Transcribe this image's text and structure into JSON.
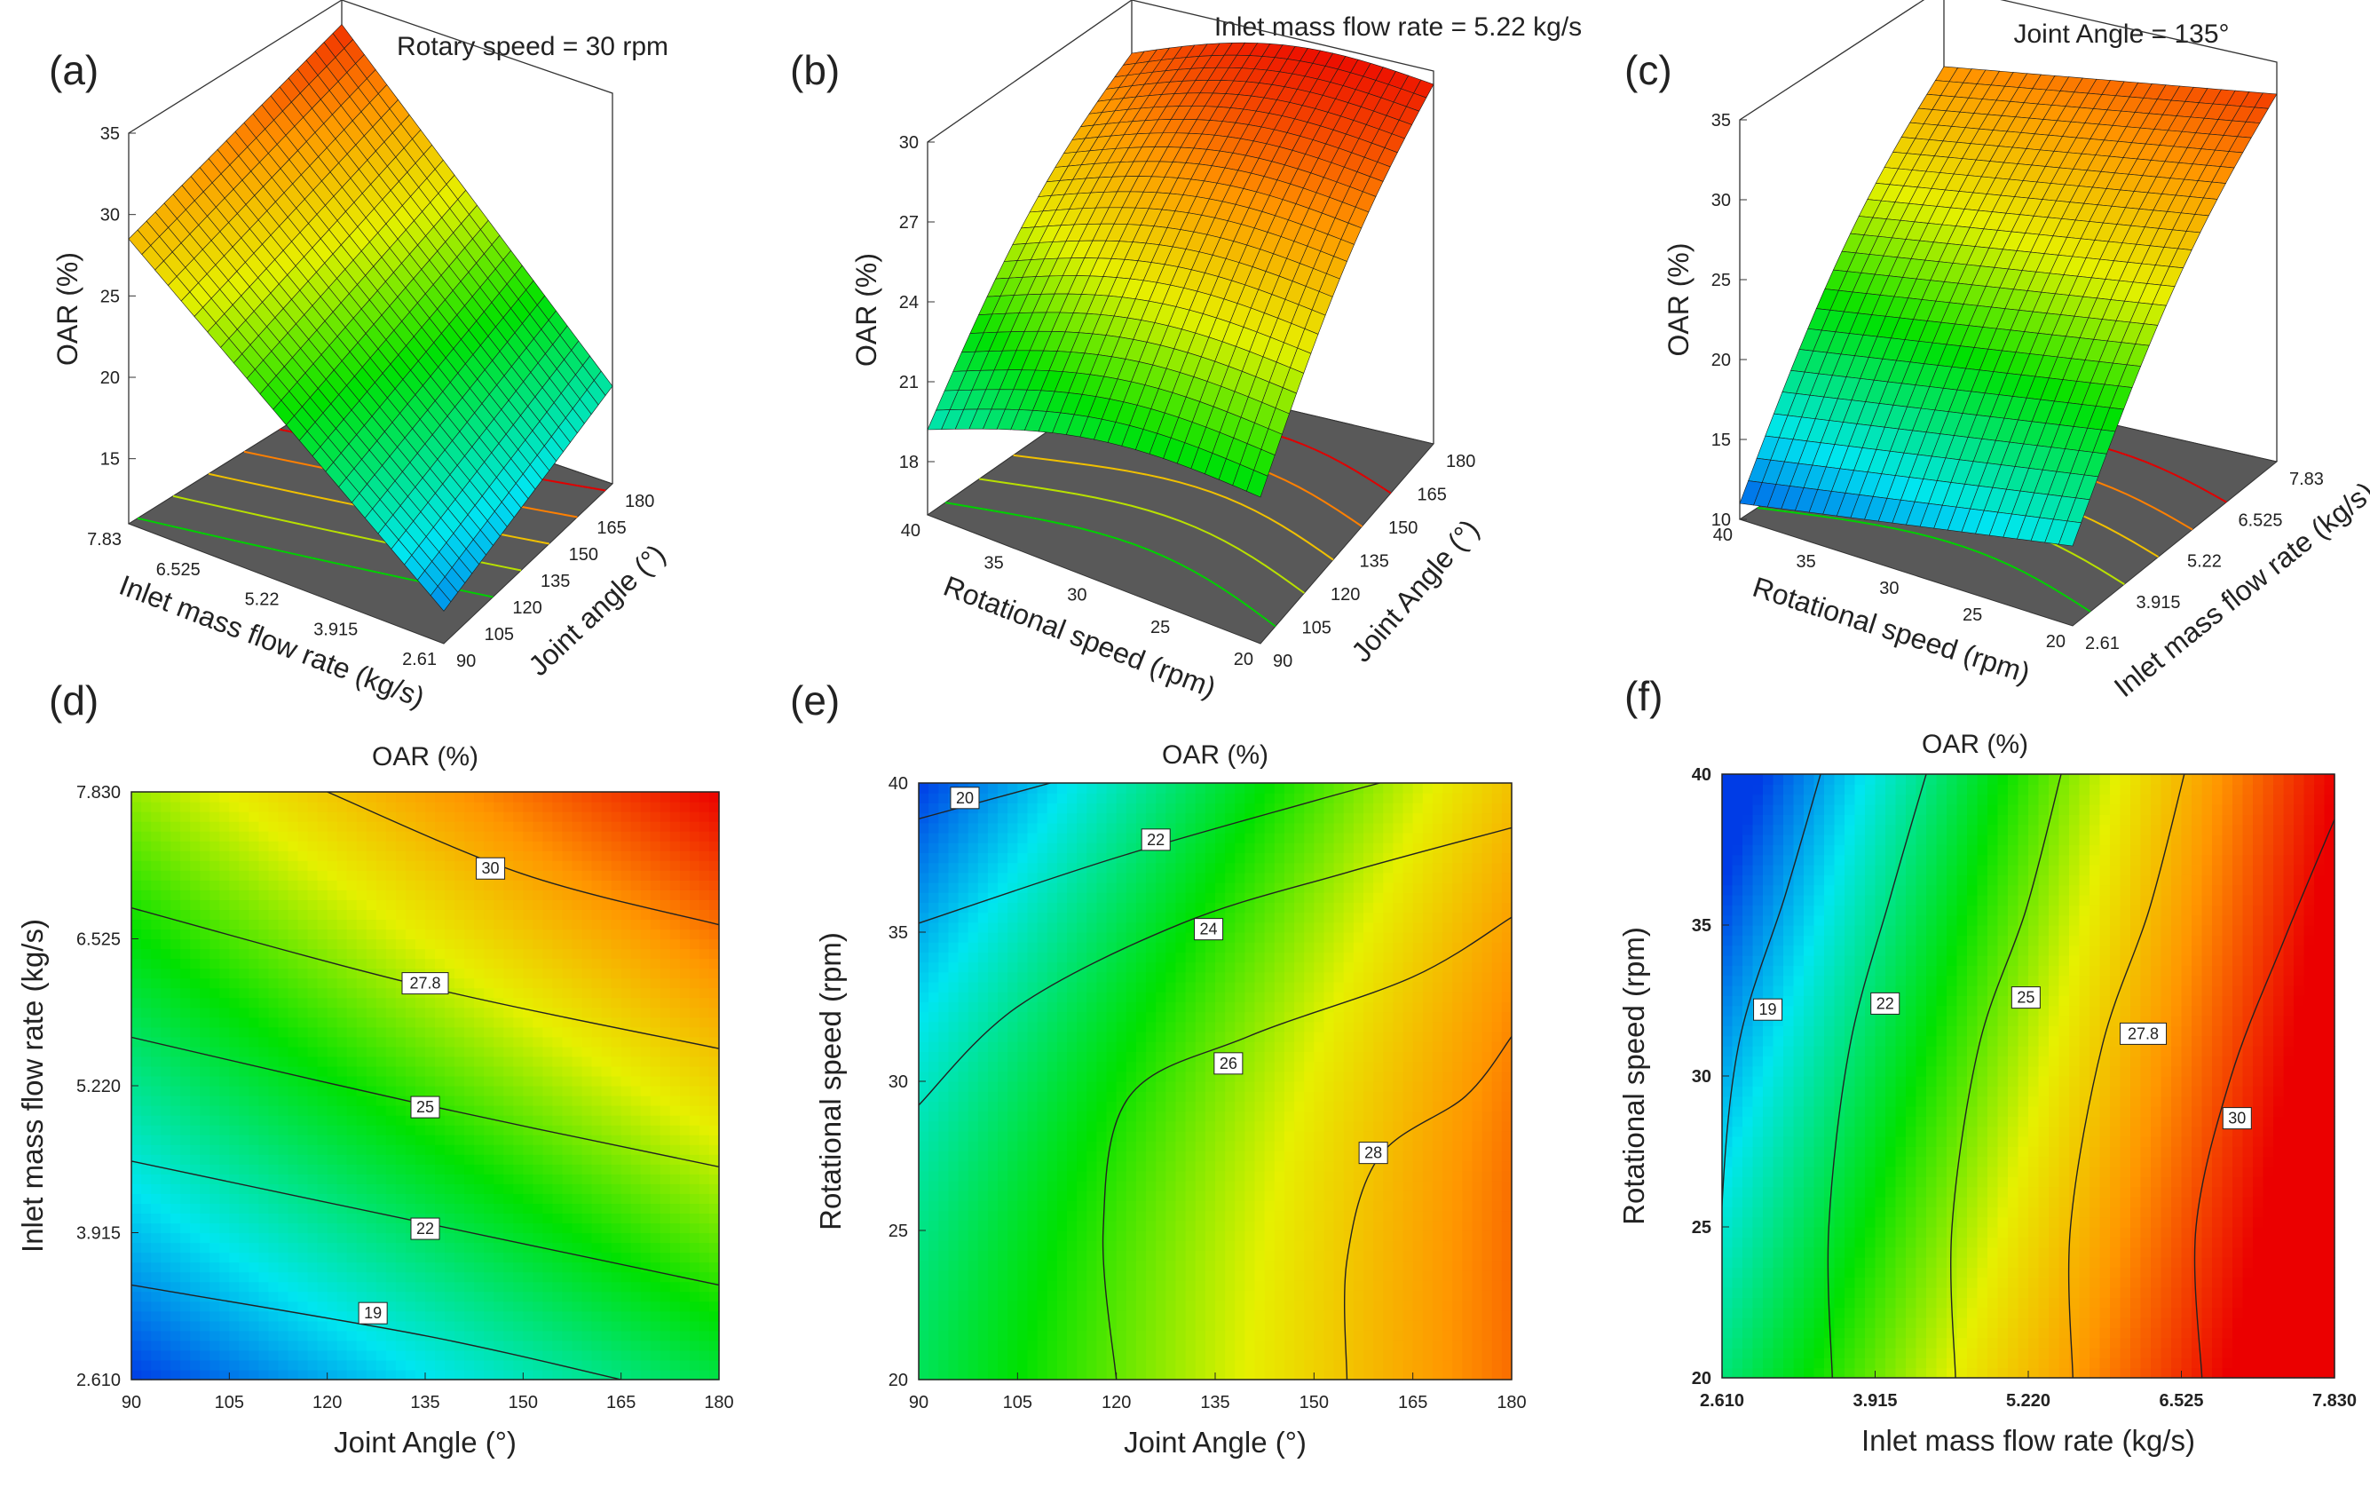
{
  "panel_labels": [
    "(a)",
    "(b)",
    "(c)",
    "(d)",
    "(e)",
    "(f)"
  ],
  "chart_data": [
    {
      "panel": "(a)",
      "type": "surface3d",
      "title": "Rotary speed = 30 rpm",
      "xlabel": "Joint angle (°)",
      "ylabel": "Inlet mass flow rate (kg/s)",
      "zlabel": "OAR (%)",
      "x_ticks": [
        "90",
        "105",
        "120",
        "135",
        "150",
        "165",
        "180"
      ],
      "y_ticks": [
        "2.61",
        "3.915",
        "5.22",
        "6.525",
        "7.83"
      ],
      "z_ticks": [
        "15",
        "20",
        "25",
        "30",
        "35"
      ],
      "xlim": [
        90,
        180
      ],
      "ylim": [
        2.61,
        7.83
      ],
      "zlim": [
        11,
        35
      ],
      "corner_values": {
        "x_min_y_min": 13,
        "x_max_y_min": 17,
        "x_min_y_max": 28.5,
        "x_max_y_max": 33.5
      }
    },
    {
      "panel": "(b)",
      "type": "surface3d",
      "title": "Inlet mass flow rate = 5.22 kg/s",
      "xlabel": "Joint Angle (°)",
      "ylabel": "Rotational speed (rpm)",
      "zlabel": "OAR (%)",
      "x_ticks": [
        "90",
        "105",
        "120",
        "135",
        "150",
        "165",
        "180"
      ],
      "y_ticks": [
        "20",
        "25",
        "30",
        "35",
        "40"
      ],
      "z_ticks": [
        "18",
        "21",
        "24",
        "27",
        "30"
      ],
      "xlim": [
        90,
        180
      ],
      "ylim": [
        20,
        40
      ],
      "zlim": [
        16,
        30
      ],
      "corner_values": {
        "x_min_y_max": 19.2,
        "x_max_y_max": 28,
        "x_min_y_min": 21.5,
        "x_max_y_min": 29.5
      }
    },
    {
      "panel": "(c)",
      "type": "surface3d",
      "title": "Joint Angle = 135°",
      "xlabel": "Inlet mass flow rate (kg/s)",
      "ylabel": "Rotational speed (rpm)",
      "zlabel": "OAR (%)",
      "x_ticks": [
        "2.61",
        "3.915",
        "5.22",
        "6.525",
        "7.83"
      ],
      "y_ticks": [
        "20",
        "25",
        "30",
        "35",
        "40"
      ],
      "z_ticks": [
        "10",
        "15",
        "20",
        "25",
        "30",
        "35"
      ],
      "xlim": [
        2.61,
        7.83
      ],
      "ylim": [
        20,
        40
      ],
      "zlim": [
        10,
        35
      ],
      "corner_values": {
        "x_min_y_max": 11,
        "x_max_y_max": 30,
        "x_min_y_min": 15,
        "x_max_y_min": 33
      }
    },
    {
      "panel": "(d)",
      "type": "contour",
      "title": "OAR (%)",
      "xlabel": "Joint Angle (°)",
      "ylabel": "Inlet mass flow rate (kg/s)",
      "x_ticks": [
        "90",
        "105",
        "120",
        "135",
        "150",
        "165",
        "180"
      ],
      "y_ticks": [
        "2.610",
        "3.915",
        "5.220",
        "6.525",
        "7.830"
      ],
      "xlim": [
        90,
        180
      ],
      "ylim": [
        2.61,
        7.83
      ],
      "color_range": [
        14,
        34
      ],
      "contour_levels": [
        {
          "label": "19",
          "points": [
            [
              90,
              3.45
            ],
            [
              135,
              3.0
            ],
            [
              165,
              2.61
            ]
          ],
          "label_at": [
            127,
            3.2
          ]
        },
        {
          "label": "22",
          "points": [
            [
              90,
              4.55
            ],
            [
              135,
              4.0
            ],
            [
              180,
              3.45
            ]
          ],
          "label_at": [
            135,
            3.95
          ]
        },
        {
          "label": "25",
          "points": [
            [
              90,
              5.65
            ],
            [
              135,
              5.05
            ],
            [
              180,
              4.5
            ]
          ],
          "label_at": [
            135,
            5.03
          ]
        },
        {
          "label": "27.8",
          "points": [
            [
              90,
              6.8
            ],
            [
              135,
              6.1
            ],
            [
              180,
              5.55
            ]
          ],
          "label_at": [
            135,
            6.13
          ]
        },
        {
          "label": "30",
          "points": [
            [
              120,
              7.83
            ],
            [
              150,
              7.1
            ],
            [
              180,
              6.65
            ]
          ],
          "label_at": [
            145,
            7.15
          ]
        }
      ]
    },
    {
      "panel": "(e)",
      "type": "contour",
      "title": "OAR (%)",
      "xlabel": "Joint Angle (°)",
      "ylabel": "Rotational speed (rpm)",
      "x_ticks": [
        "90",
        "105",
        "120",
        "135",
        "150",
        "165",
        "180"
      ],
      "y_ticks": [
        "20",
        "25",
        "30",
        "35",
        "40"
      ],
      "xlim": [
        90,
        180
      ],
      "ylim": [
        20,
        40
      ],
      "color_range": [
        18,
        31
      ],
      "contour_levels": [
        {
          "label": "20",
          "points": [
            [
              90,
              38.8
            ],
            [
              100,
              39.4
            ],
            [
              110,
              40
            ]
          ],
          "label_at": [
            97,
            39.5
          ]
        },
        {
          "label": "22",
          "points": [
            [
              90,
              35.3
            ],
            [
              120,
              37.5
            ],
            [
              150,
              39.4
            ],
            [
              160,
              40
            ]
          ],
          "label_at": [
            126,
            38.1
          ]
        },
        {
          "label": "24",
          "points": [
            [
              90,
              29.2
            ],
            [
              105,
              32.5
            ],
            [
              130,
              35.3
            ],
            [
              155,
              37
            ],
            [
              180,
              38.5
            ]
          ],
          "label_at": [
            134,
            35.1
          ]
        },
        {
          "label": "26",
          "points": [
            [
              120,
              20
            ],
            [
              118,
              25
            ],
            [
              122,
              29.5
            ],
            [
              140,
              31.5
            ],
            [
              165,
              33.5
            ],
            [
              180,
              35.5
            ]
          ],
          "label_at": [
            137,
            30.6
          ]
        },
        {
          "label": "28",
          "points": [
            [
              155,
              20
            ],
            [
              155,
              24
            ],
            [
              160,
              27.5
            ],
            [
              173,
              29.5
            ],
            [
              180,
              31.5
            ]
          ],
          "label_at": [
            159,
            27.6
          ]
        }
      ]
    },
    {
      "panel": "(f)",
      "type": "contour",
      "title": "OAR (%)",
      "xlabel": "Inlet mass flow rate (kg/s)",
      "ylabel": "Rotational speed (rpm)",
      "x_ticks": [
        "2.610",
        "3.915",
        "5.220",
        "6.525",
        "7.830"
      ],
      "y_ticks": [
        "20",
        "25",
        "30",
        "35",
        "40"
      ],
      "xlim": [
        2.61,
        7.83
      ],
      "ylim": [
        20,
        40
      ],
      "color_range": [
        12,
        33
      ],
      "contour_levels": [
        {
          "label": "19",
          "points": [
            [
              2.61,
              20
            ],
            [
              2.6,
              25
            ],
            [
              2.75,
              31
            ],
            [
              3.15,
              36
            ],
            [
              3.45,
              40
            ]
          ],
          "label_at": [
            3.0,
            32.2
          ]
        },
        {
          "label": "22",
          "points": [
            [
              3.55,
              20
            ],
            [
              3.52,
              25
            ],
            [
              3.7,
              31
            ],
            [
              4.05,
              36
            ],
            [
              4.35,
              40
            ]
          ],
          "label_at": [
            4.0,
            32.4
          ]
        },
        {
          "label": "25",
          "points": [
            [
              4.6,
              20
            ],
            [
              4.57,
              25
            ],
            [
              4.8,
              31
            ],
            [
              5.2,
              35.5
            ],
            [
              5.5,
              40
            ]
          ],
          "label_at": [
            5.2,
            32.6
          ]
        },
        {
          "label": "27.8",
          "points": [
            [
              5.6,
              20
            ],
            [
              5.58,
              25
            ],
            [
              5.85,
              31
            ],
            [
              6.25,
              35.5
            ],
            [
              6.55,
              40
            ]
          ],
          "label_at": [
            6.2,
            31.4
          ]
        },
        {
          "label": "30",
          "points": [
            [
              6.7,
              20
            ],
            [
              6.65,
              25
            ],
            [
              6.95,
              30
            ],
            [
              7.4,
              34.5
            ],
            [
              7.83,
              38.5
            ]
          ],
          "label_at": [
            7.0,
            28.6
          ]
        }
      ]
    }
  ]
}
